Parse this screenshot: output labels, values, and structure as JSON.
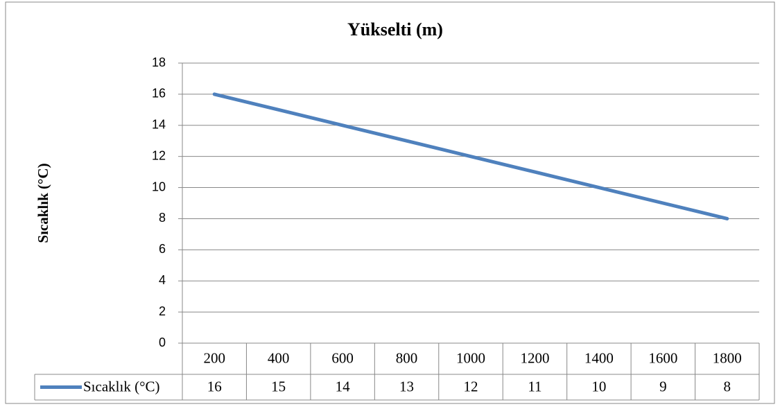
{
  "chart_data": {
    "type": "line",
    "title": "Yükselti (m)",
    "y_label": "Sıcaklık (°C)",
    "categories": [
      "200",
      "400",
      "600",
      "800",
      "1000",
      "1200",
      "1400",
      "1600",
      "1800"
    ],
    "series": [
      {
        "name": "Sıcaklık (°C)",
        "color": "#4f81bd",
        "values": [
          16,
          15,
          14,
          13,
          12,
          11,
          10,
          9,
          8
        ]
      }
    ],
    "ylim": [
      0,
      18
    ],
    "yticks": [
      0,
      2,
      4,
      6,
      8,
      10,
      12,
      14,
      16,
      18
    ],
    "grid": true,
    "data_table": true
  }
}
